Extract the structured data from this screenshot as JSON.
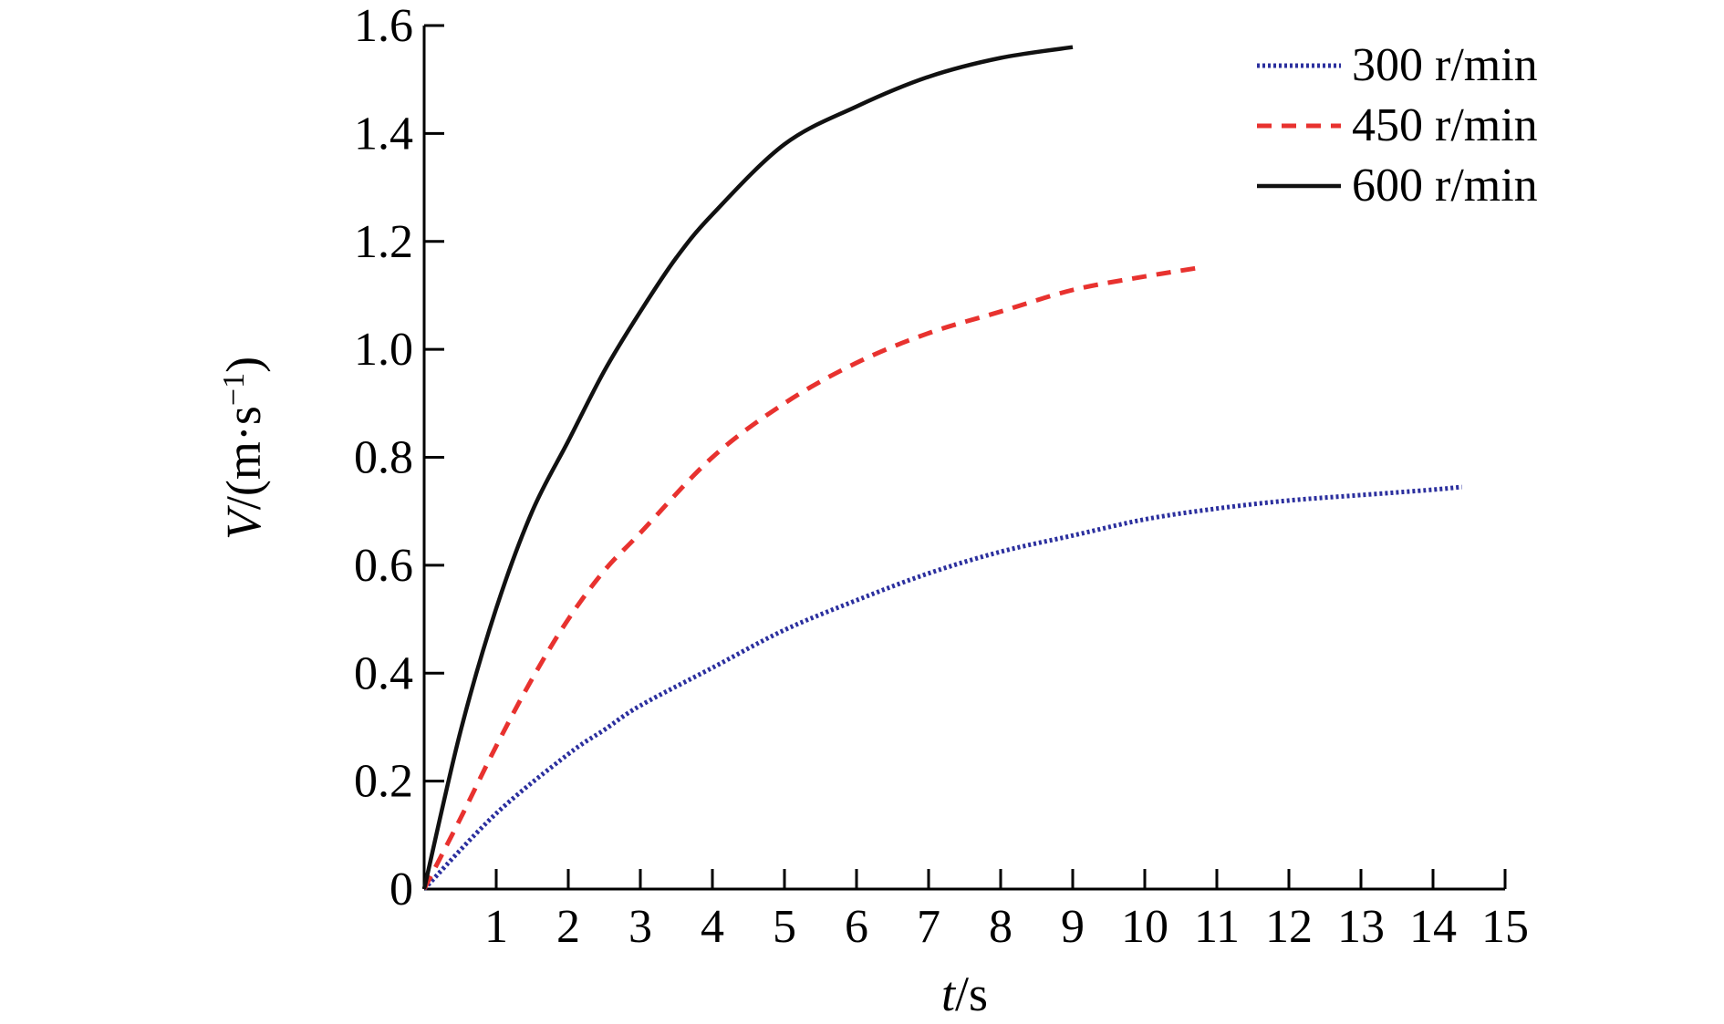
{
  "chart_data": {
    "type": "line",
    "title": "",
    "xlabel": {
      "var": "t",
      "unit": "/s"
    },
    "ylabel": {
      "var": "V",
      "unit": "/(m·s",
      "sup": "−1",
      "close": ")"
    },
    "xlim": [
      0,
      15
    ],
    "ylim": [
      0,
      1.6
    ],
    "xticks": [
      1,
      2,
      3,
      4,
      5,
      6,
      7,
      8,
      9,
      10,
      11,
      12,
      13,
      14,
      15
    ],
    "yticks": [
      0,
      0.2,
      0.4,
      0.6,
      0.8,
      1.0,
      1.2,
      1.4,
      1.6
    ],
    "ytick_labels": [
      "0",
      "0.2",
      "0.4",
      "0.6",
      "0.8",
      "1.0",
      "1.2",
      "1.4",
      "1.6"
    ],
    "grid": false,
    "legend_position": "top-right",
    "series": [
      {
        "name": "300 r/min",
        "color": "#2b2f9e",
        "style": "dotted",
        "x": [
          0,
          1,
          2,
          2.5,
          3,
          4,
          5,
          6,
          7,
          8,
          9,
          10,
          11,
          12,
          13,
          14,
          14.4
        ],
        "y": [
          0,
          0.14,
          0.25,
          0.295,
          0.34,
          0.41,
          0.48,
          0.535,
          0.585,
          0.625,
          0.655,
          0.685,
          0.705,
          0.72,
          0.73,
          0.74,
          0.745
        ]
      },
      {
        "name": "450 r/min",
        "color": "#e8322f",
        "style": "dashed",
        "x": [
          0,
          0.5,
          1,
          1.5,
          2,
          2.5,
          3,
          4,
          5,
          6,
          7,
          8,
          9,
          10,
          10.7
        ],
        "y": [
          0,
          0.13,
          0.265,
          0.39,
          0.5,
          0.59,
          0.66,
          0.8,
          0.9,
          0.975,
          1.03,
          1.07,
          1.11,
          1.135,
          1.15
        ]
      },
      {
        "name": "600 r/min",
        "color": "#111111",
        "style": "solid",
        "x": [
          0,
          0.5,
          1,
          1.5,
          2,
          2.5,
          3,
          3.5,
          4,
          5,
          6,
          7,
          8,
          9
        ],
        "y": [
          0,
          0.29,
          0.52,
          0.7,
          0.83,
          0.96,
          1.07,
          1.17,
          1.25,
          1.38,
          1.45,
          1.505,
          1.54,
          1.56
        ]
      }
    ]
  }
}
